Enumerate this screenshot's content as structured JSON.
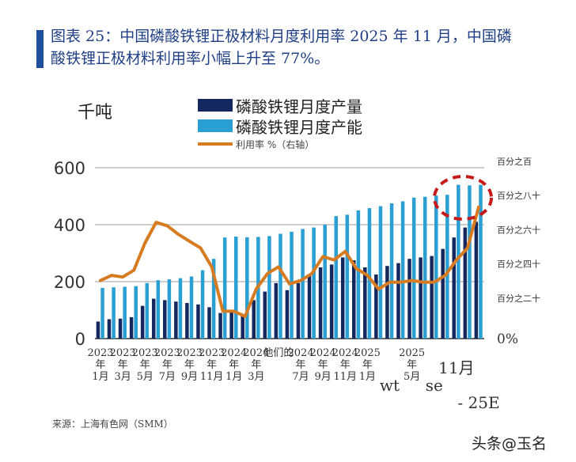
{
  "title": "图表 25：中国磷酸铁锂正极材料月度利用率 2025 年 11 月，中国磷酸铁锂正极材料利用率小幅上升至 77%。",
  "source": "来源：上海有色网（SMM）",
  "watermark": "头条@玉名",
  "colors": {
    "output": "#14275e",
    "capacity": "#2a9fd3",
    "rate": "#d77b21",
    "title": "#1f3f86",
    "highlight": "#c41a1a"
  },
  "chart_data": {
    "type": "bar+line",
    "title": "",
    "ylabel_left": "千吨",
    "ylim_left": [
      0,
      600
    ],
    "left_ticks": [
      "0",
      "200",
      "400",
      "600"
    ],
    "ylim_right": [
      0,
      100
    ],
    "right_ticks": [
      "0%",
      "百分之二十",
      "百分之四十",
      "百分之六十",
      "百分之八十",
      "百分之百"
    ],
    "x_labels": [
      "2023年1月",
      "2023年3月",
      "2023年5月",
      "2023年7月",
      "2023年9月",
      "2023年11月",
      "2024年1月",
      "2024年3月",
      "他们的",
      "2024年7月",
      "2024年9月",
      "2024年11月",
      "2025年1月",
      "wt",
      "2025年5月",
      "se",
      "11月",
      "- 25E"
    ],
    "categories": [
      "2023-01",
      "2023-02",
      "2023-03",
      "2023-04",
      "2023-05",
      "2023-06",
      "2023-07",
      "2023-08",
      "2023-09",
      "2023-10",
      "2023-11",
      "2023-12",
      "2024-01",
      "2024-02",
      "2024-03",
      "2024-04",
      "2024-05",
      "2024-06",
      "2024-07",
      "2024-08",
      "2024-09",
      "2024-10",
      "2024-11",
      "2024-12",
      "2025-01",
      "2025-02",
      "2025-03",
      "2025-04",
      "2025-05",
      "2025-06",
      "2025-07",
      "2025-08",
      "2025-09",
      "2025-10",
      "2025-11"
    ],
    "series": [
      {
        "name": "磷酸铁锂月度产量",
        "type": "bar",
        "values": [
          60,
          68,
          70,
          75,
          115,
          140,
          135,
          130,
          125,
          120,
          110,
          90,
          95,
          80,
          135,
          165,
          195,
          170,
          195,
          220,
          250,
          260,
          285,
          275,
          250,
          225,
          255,
          265,
          280,
          285,
          290,
          315,
          355,
          390,
          410
        ]
      },
      {
        "name": "磷酸铁锂月度产能",
        "type": "bar",
        "values": [
          178,
          180,
          182,
          184,
          195,
          205,
          208,
          212,
          218,
          240,
          280,
          355,
          358,
          356,
          357,
          360,
          368,
          375,
          385,
          390,
          400,
          430,
          435,
          450,
          458,
          465,
          475,
          482,
          495,
          498,
          502,
          505,
          540,
          538,
          540
        ]
      },
      {
        "name": "利用率 %（右轴）",
        "type": "line",
        "axis": "right",
        "values": [
          34,
          37,
          36,
          40,
          56,
          68,
          66,
          61,
          57,
          53,
          42,
          16,
          16,
          13,
          29,
          38,
          42,
          32,
          34,
          38,
          48,
          46,
          51,
          41,
          37,
          29,
          33,
          33,
          34,
          33,
          33,
          37,
          46,
          53,
          77
        ]
      }
    ]
  }
}
